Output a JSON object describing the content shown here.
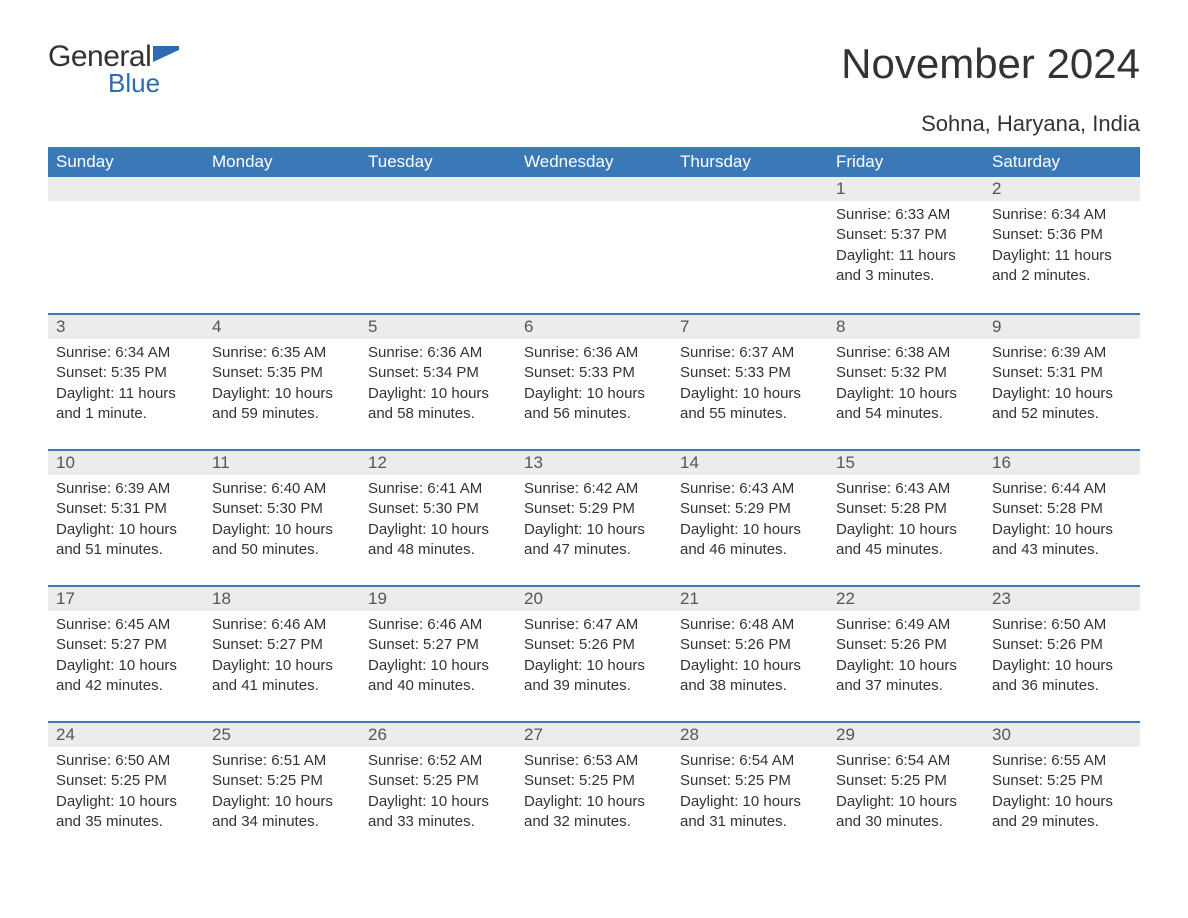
{
  "logo": {
    "word1": "General",
    "word2": "Blue",
    "flag_color": "#2d6cb3"
  },
  "title": "November 2024",
  "location": "Sohna, Haryana, India",
  "colors": {
    "header_bg": "#3b78b8",
    "header_text": "#ffffff",
    "day_header_bg": "#ececec",
    "day_header_border": "#3b78b8",
    "body_text": "#333333",
    "logo_blue": "#2d6cb3",
    "background": "#ffffff"
  },
  "typography": {
    "title_fontsize": 42,
    "location_fontsize": 22,
    "weekday_fontsize": 17,
    "daynum_fontsize": 17,
    "body_fontsize": 15
  },
  "layout": {
    "type": "calendar-table",
    "columns": 7,
    "rows": 5,
    "start_column_index": 5
  },
  "weekdays": [
    "Sunday",
    "Monday",
    "Tuesday",
    "Wednesday",
    "Thursday",
    "Friday",
    "Saturday"
  ],
  "days": [
    {
      "n": 1,
      "sunrise": "6:33 AM",
      "sunset": "5:37 PM",
      "daylight": "11 hours and 3 minutes."
    },
    {
      "n": 2,
      "sunrise": "6:34 AM",
      "sunset": "5:36 PM",
      "daylight": "11 hours and 2 minutes."
    },
    {
      "n": 3,
      "sunrise": "6:34 AM",
      "sunset": "5:35 PM",
      "daylight": "11 hours and 1 minute."
    },
    {
      "n": 4,
      "sunrise": "6:35 AM",
      "sunset": "5:35 PM",
      "daylight": "10 hours and 59 minutes."
    },
    {
      "n": 5,
      "sunrise": "6:36 AM",
      "sunset": "5:34 PM",
      "daylight": "10 hours and 58 minutes."
    },
    {
      "n": 6,
      "sunrise": "6:36 AM",
      "sunset": "5:33 PM",
      "daylight": "10 hours and 56 minutes."
    },
    {
      "n": 7,
      "sunrise": "6:37 AM",
      "sunset": "5:33 PM",
      "daylight": "10 hours and 55 minutes."
    },
    {
      "n": 8,
      "sunrise": "6:38 AM",
      "sunset": "5:32 PM",
      "daylight": "10 hours and 54 minutes."
    },
    {
      "n": 9,
      "sunrise": "6:39 AM",
      "sunset": "5:31 PM",
      "daylight": "10 hours and 52 minutes."
    },
    {
      "n": 10,
      "sunrise": "6:39 AM",
      "sunset": "5:31 PM",
      "daylight": "10 hours and 51 minutes."
    },
    {
      "n": 11,
      "sunrise": "6:40 AM",
      "sunset": "5:30 PM",
      "daylight": "10 hours and 50 minutes."
    },
    {
      "n": 12,
      "sunrise": "6:41 AM",
      "sunset": "5:30 PM",
      "daylight": "10 hours and 48 minutes."
    },
    {
      "n": 13,
      "sunrise": "6:42 AM",
      "sunset": "5:29 PM",
      "daylight": "10 hours and 47 minutes."
    },
    {
      "n": 14,
      "sunrise": "6:43 AM",
      "sunset": "5:29 PM",
      "daylight": "10 hours and 46 minutes."
    },
    {
      "n": 15,
      "sunrise": "6:43 AM",
      "sunset": "5:28 PM",
      "daylight": "10 hours and 45 minutes."
    },
    {
      "n": 16,
      "sunrise": "6:44 AM",
      "sunset": "5:28 PM",
      "daylight": "10 hours and 43 minutes."
    },
    {
      "n": 17,
      "sunrise": "6:45 AM",
      "sunset": "5:27 PM",
      "daylight": "10 hours and 42 minutes."
    },
    {
      "n": 18,
      "sunrise": "6:46 AM",
      "sunset": "5:27 PM",
      "daylight": "10 hours and 41 minutes."
    },
    {
      "n": 19,
      "sunrise": "6:46 AM",
      "sunset": "5:27 PM",
      "daylight": "10 hours and 40 minutes."
    },
    {
      "n": 20,
      "sunrise": "6:47 AM",
      "sunset": "5:26 PM",
      "daylight": "10 hours and 39 minutes."
    },
    {
      "n": 21,
      "sunrise": "6:48 AM",
      "sunset": "5:26 PM",
      "daylight": "10 hours and 38 minutes."
    },
    {
      "n": 22,
      "sunrise": "6:49 AM",
      "sunset": "5:26 PM",
      "daylight": "10 hours and 37 minutes."
    },
    {
      "n": 23,
      "sunrise": "6:50 AM",
      "sunset": "5:26 PM",
      "daylight": "10 hours and 36 minutes."
    },
    {
      "n": 24,
      "sunrise": "6:50 AM",
      "sunset": "5:25 PM",
      "daylight": "10 hours and 35 minutes."
    },
    {
      "n": 25,
      "sunrise": "6:51 AM",
      "sunset": "5:25 PM",
      "daylight": "10 hours and 34 minutes."
    },
    {
      "n": 26,
      "sunrise": "6:52 AM",
      "sunset": "5:25 PM",
      "daylight": "10 hours and 33 minutes."
    },
    {
      "n": 27,
      "sunrise": "6:53 AM",
      "sunset": "5:25 PM",
      "daylight": "10 hours and 32 minutes."
    },
    {
      "n": 28,
      "sunrise": "6:54 AM",
      "sunset": "5:25 PM",
      "daylight": "10 hours and 31 minutes."
    },
    {
      "n": 29,
      "sunrise": "6:54 AM",
      "sunset": "5:25 PM",
      "daylight": "10 hours and 30 minutes."
    },
    {
      "n": 30,
      "sunrise": "6:55 AM",
      "sunset": "5:25 PM",
      "daylight": "10 hours and 29 minutes."
    }
  ],
  "labels": {
    "sunrise_prefix": "Sunrise: ",
    "sunset_prefix": "Sunset: ",
    "daylight_prefix": "Daylight: "
  }
}
